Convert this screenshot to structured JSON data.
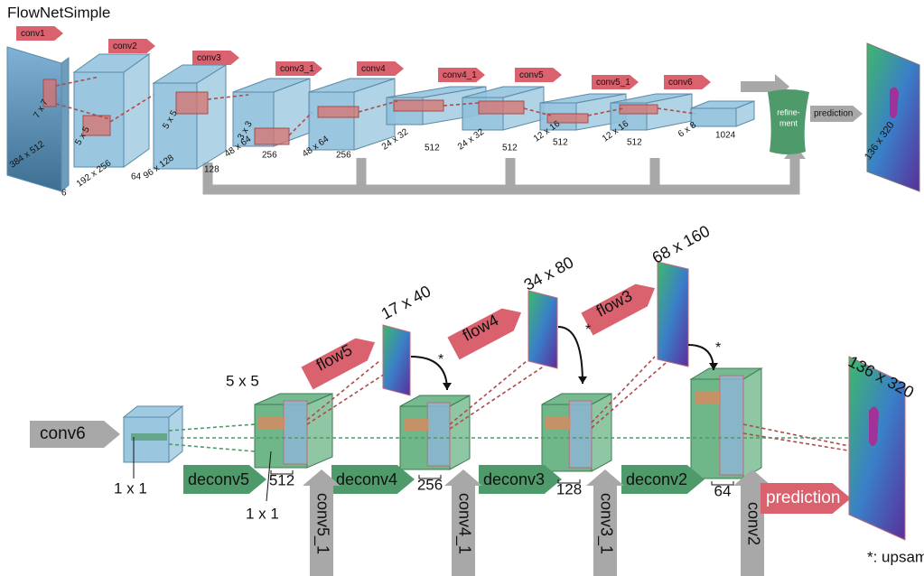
{
  "title": "FlowNetSimple",
  "encoder": {
    "layer_labels": [
      "conv1",
      "conv2",
      "conv3",
      "conv3_1",
      "conv4",
      "conv4_1",
      "conv5",
      "conv5_1",
      "conv6"
    ],
    "kernel_labels": [
      "7 x 7",
      "5 x 5",
      "5 x 5",
      "3 x 3"
    ],
    "sizes": [
      "384 x 512",
      "192 x 256",
      "96 x 128",
      "48 x 64",
      "48 x 64",
      "24 x 32",
      "24 x 32",
      "12 x 16",
      "12 x 16",
      "6 x 8"
    ],
    "channels": [
      "6",
      "64",
      "128",
      "256",
      "256",
      "512",
      "512",
      "512",
      "512",
      "1024"
    ],
    "refinement": [
      "refine-",
      "ment"
    ],
    "prediction": "prediction",
    "output_size": "136 x 320"
  },
  "refinement": {
    "inputs": [
      "conv6",
      "conv5_1",
      "conv4_1",
      "conv3_1",
      "conv2"
    ],
    "deconvs": [
      "deconv5",
      "deconv4",
      "deconv3",
      "deconv2"
    ],
    "channels": [
      "512",
      "256",
      "128",
      "64"
    ],
    "flows": [
      "flow5",
      "flow4",
      "flow3"
    ],
    "flow_sizes": [
      "17 x 40",
      "34 x 80",
      "68 x 160"
    ],
    "upsample_marks": [
      "*",
      "*",
      "*"
    ],
    "kernel_labels": [
      "1 x 1",
      "5 x 5",
      "1 x 1"
    ],
    "prediction": "prediction",
    "output_size": "136 x 320",
    "footnote": "*: upsampled"
  }
}
